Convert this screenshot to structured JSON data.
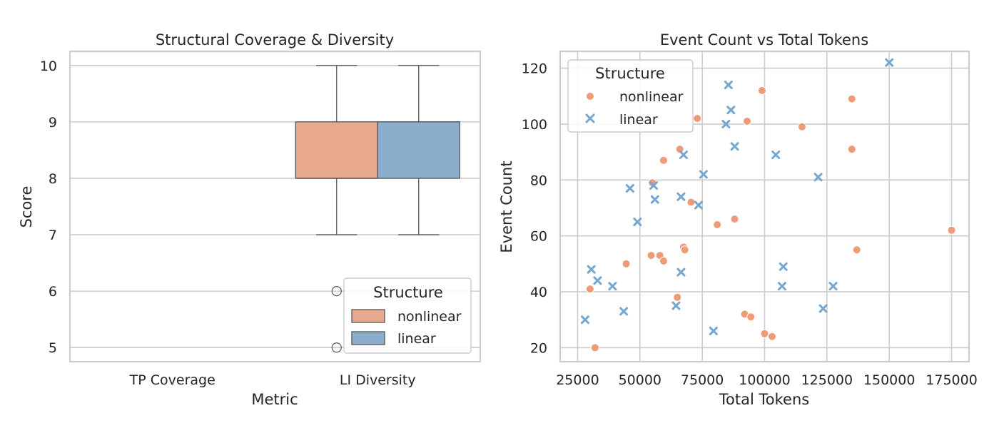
{
  "colors": {
    "nonlinear": "#e9a98d",
    "nonlinear_point": "#ef9b77",
    "linear": "#8aaecb",
    "linear_point": "#76a7d0",
    "edge": "#555555"
  },
  "chart_data": [
    {
      "type": "box",
      "title": "Structural Coverage & Diversity",
      "xlabel": "Metric",
      "ylabel": "Score",
      "categories": [
        "TP Coverage",
        "LI Diversity"
      ],
      "y_ticks": [
        "5",
        "6",
        "7",
        "8",
        "9",
        "10"
      ],
      "ylim": [
        4.75,
        10.25
      ],
      "grid": true,
      "legend": {
        "title": "Structure",
        "placement": "lower-right",
        "entries": [
          "nonlinear",
          "linear"
        ]
      },
      "series": [
        {
          "name": "nonlinear",
          "category": "LI Diversity",
          "whisker_low": 7,
          "q1": 8,
          "median": 8,
          "q3": 9,
          "whisker_high": 10,
          "outliers": [
            6,
            5
          ]
        },
        {
          "name": "linear",
          "category": "LI Diversity",
          "whisker_low": 7,
          "q1": 8,
          "median": 9,
          "q3": 9,
          "whisker_high": 10,
          "outliers": []
        }
      ]
    },
    {
      "type": "scatter",
      "title": "Event Count vs Total Tokens",
      "xlabel": "Total Tokens",
      "ylabel": "Event Count",
      "x_ticks": [
        "25000",
        "50000",
        "75000",
        "100000",
        "125000",
        "150000",
        "175000"
      ],
      "y_ticks": [
        "20",
        "40",
        "60",
        "80",
        "100",
        "120"
      ],
      "xlim": [
        18000,
        182000
      ],
      "ylim": [
        15,
        126
      ],
      "grid": true,
      "legend": {
        "title": "Structure",
        "placement": "upper-left",
        "entries": [
          "nonlinear",
          "linear"
        ]
      },
      "series": [
        {
          "name": "nonlinear",
          "marker": "circle",
          "points": [
            [
              32000,
              20
            ],
            [
              30000,
              41
            ],
            [
              44500,
              50
            ],
            [
              54500,
              53
            ],
            [
              55000,
              79
            ],
            [
              58000,
              53
            ],
            [
              59500,
              51
            ],
            [
              59500,
              87
            ],
            [
              65000,
              38
            ],
            [
              66000,
              91
            ],
            [
              67500,
              56
            ],
            [
              68000,
              55
            ],
            [
              70500,
              72
            ],
            [
              73000,
              102
            ],
            [
              81000,
              64
            ],
            [
              88000,
              66
            ],
            [
              92000,
              32
            ],
            [
              94500,
              31
            ],
            [
              93000,
              101
            ],
            [
              99000,
              112
            ],
            [
              100000,
              25
            ],
            [
              103000,
              24
            ],
            [
              115000,
              99
            ],
            [
              135000,
              109
            ],
            [
              135000,
              91
            ],
            [
              137000,
              55
            ],
            [
              175000,
              62
            ]
          ]
        },
        {
          "name": "linear",
          "marker": "x",
          "points": [
            [
              28000,
              30
            ],
            [
              30500,
              48
            ],
            [
              33000,
              44
            ],
            [
              39000,
              42
            ],
            [
              43500,
              33
            ],
            [
              46000,
              77
            ],
            [
              49000,
              65
            ],
            [
              55500,
              78
            ],
            [
              56000,
              73
            ],
            [
              64500,
              35
            ],
            [
              66500,
              74
            ],
            [
              66500,
              47
            ],
            [
              67500,
              89
            ],
            [
              73500,
              71
            ],
            [
              75500,
              82
            ],
            [
              79500,
              26
            ],
            [
              84500,
              100
            ],
            [
              85500,
              114
            ],
            [
              86500,
              105
            ],
            [
              88000,
              92
            ],
            [
              104500,
              89
            ],
            [
              107000,
              42
            ],
            [
              107500,
              49
            ],
            [
              121500,
              81
            ],
            [
              123500,
              34
            ],
            [
              127500,
              42
            ],
            [
              150000,
              122
            ]
          ]
        }
      ]
    }
  ]
}
